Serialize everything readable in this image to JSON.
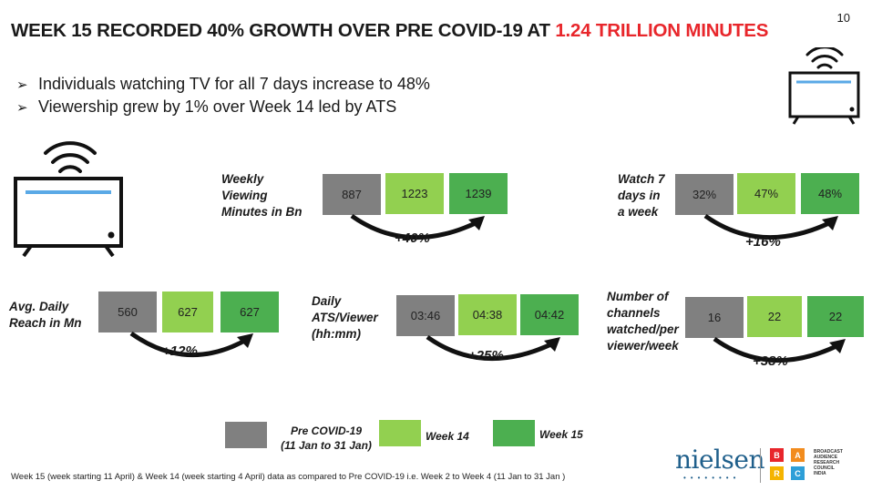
{
  "page_number": "10",
  "title": {
    "part1": "WEEK 15 RECORDED 40% GROWTH OVER PRE COVID-19 AT ",
    "part2": "1.24 TRILLION MINUTES"
  },
  "bullets": [
    "Individuals watching TV for all 7 days increase to 48%",
    "Viewership grew by 1% over Week 14 led by ATS"
  ],
  "metrics": [
    {
      "label_lines": [
        "Weekly",
        "Viewing",
        "Minutes in Bn"
      ],
      "pre": "887",
      "w14": "1223",
      "w15": "1239",
      "growth": "+40%"
    },
    {
      "label_lines": [
        "Watch 7",
        "days in",
        "a week"
      ],
      "pre": "32%",
      "w14": "47%",
      "w15": "48%",
      "growth": "+16%"
    },
    {
      "label_lines": [
        "Avg. Daily",
        "Reach in Mn"
      ],
      "pre": "560",
      "w14": "627",
      "w15": "627",
      "growth": "+12%"
    },
    {
      "label_lines": [
        "Daily",
        "ATS/Viewer",
        "(hh:mm)"
      ],
      "pre": "03:46",
      "w14": "04:38",
      "w15": "04:42",
      "growth": "+25%"
    },
    {
      "label_lines": [
        "Number of",
        "channels",
        "watched/per",
        "viewer/week"
      ],
      "pre": "16",
      "w14": "22",
      "w15": "22",
      "growth": "+38%"
    }
  ],
  "legend": {
    "pre_line1": "Pre COVID-19",
    "pre_line2": "(11 Jan to 31 Jan)",
    "w14": "Week 14",
    "w15": "Week 15"
  },
  "footnote": "Week 15 (week starting 11 April) & Week 14 (week starting 4 April) data as compared to Pre COVID-19 i.e. Week 2 to Week 4 (11 Jan to 31 Jan )",
  "logos": {
    "nielsen": "nielsen",
    "barc_letters": [
      "B",
      "A",
      "R",
      "C"
    ],
    "barc_text": [
      "BROADCAST",
      "AUDIENCE",
      "RESEARCH",
      "COUNCIL",
      "INDIA"
    ]
  },
  "colors": {
    "accent_red": "#e8262b",
    "pre_covid_grey": "#808080",
    "week14_light_green": "#92d050",
    "week15_green": "#4caf50",
    "tv_screen_blue": "#5aa9e6"
  },
  "icons": [
    "tv-wifi-icon-large",
    "tv-wifi-icon-small",
    "curved-arrow-icon"
  ]
}
